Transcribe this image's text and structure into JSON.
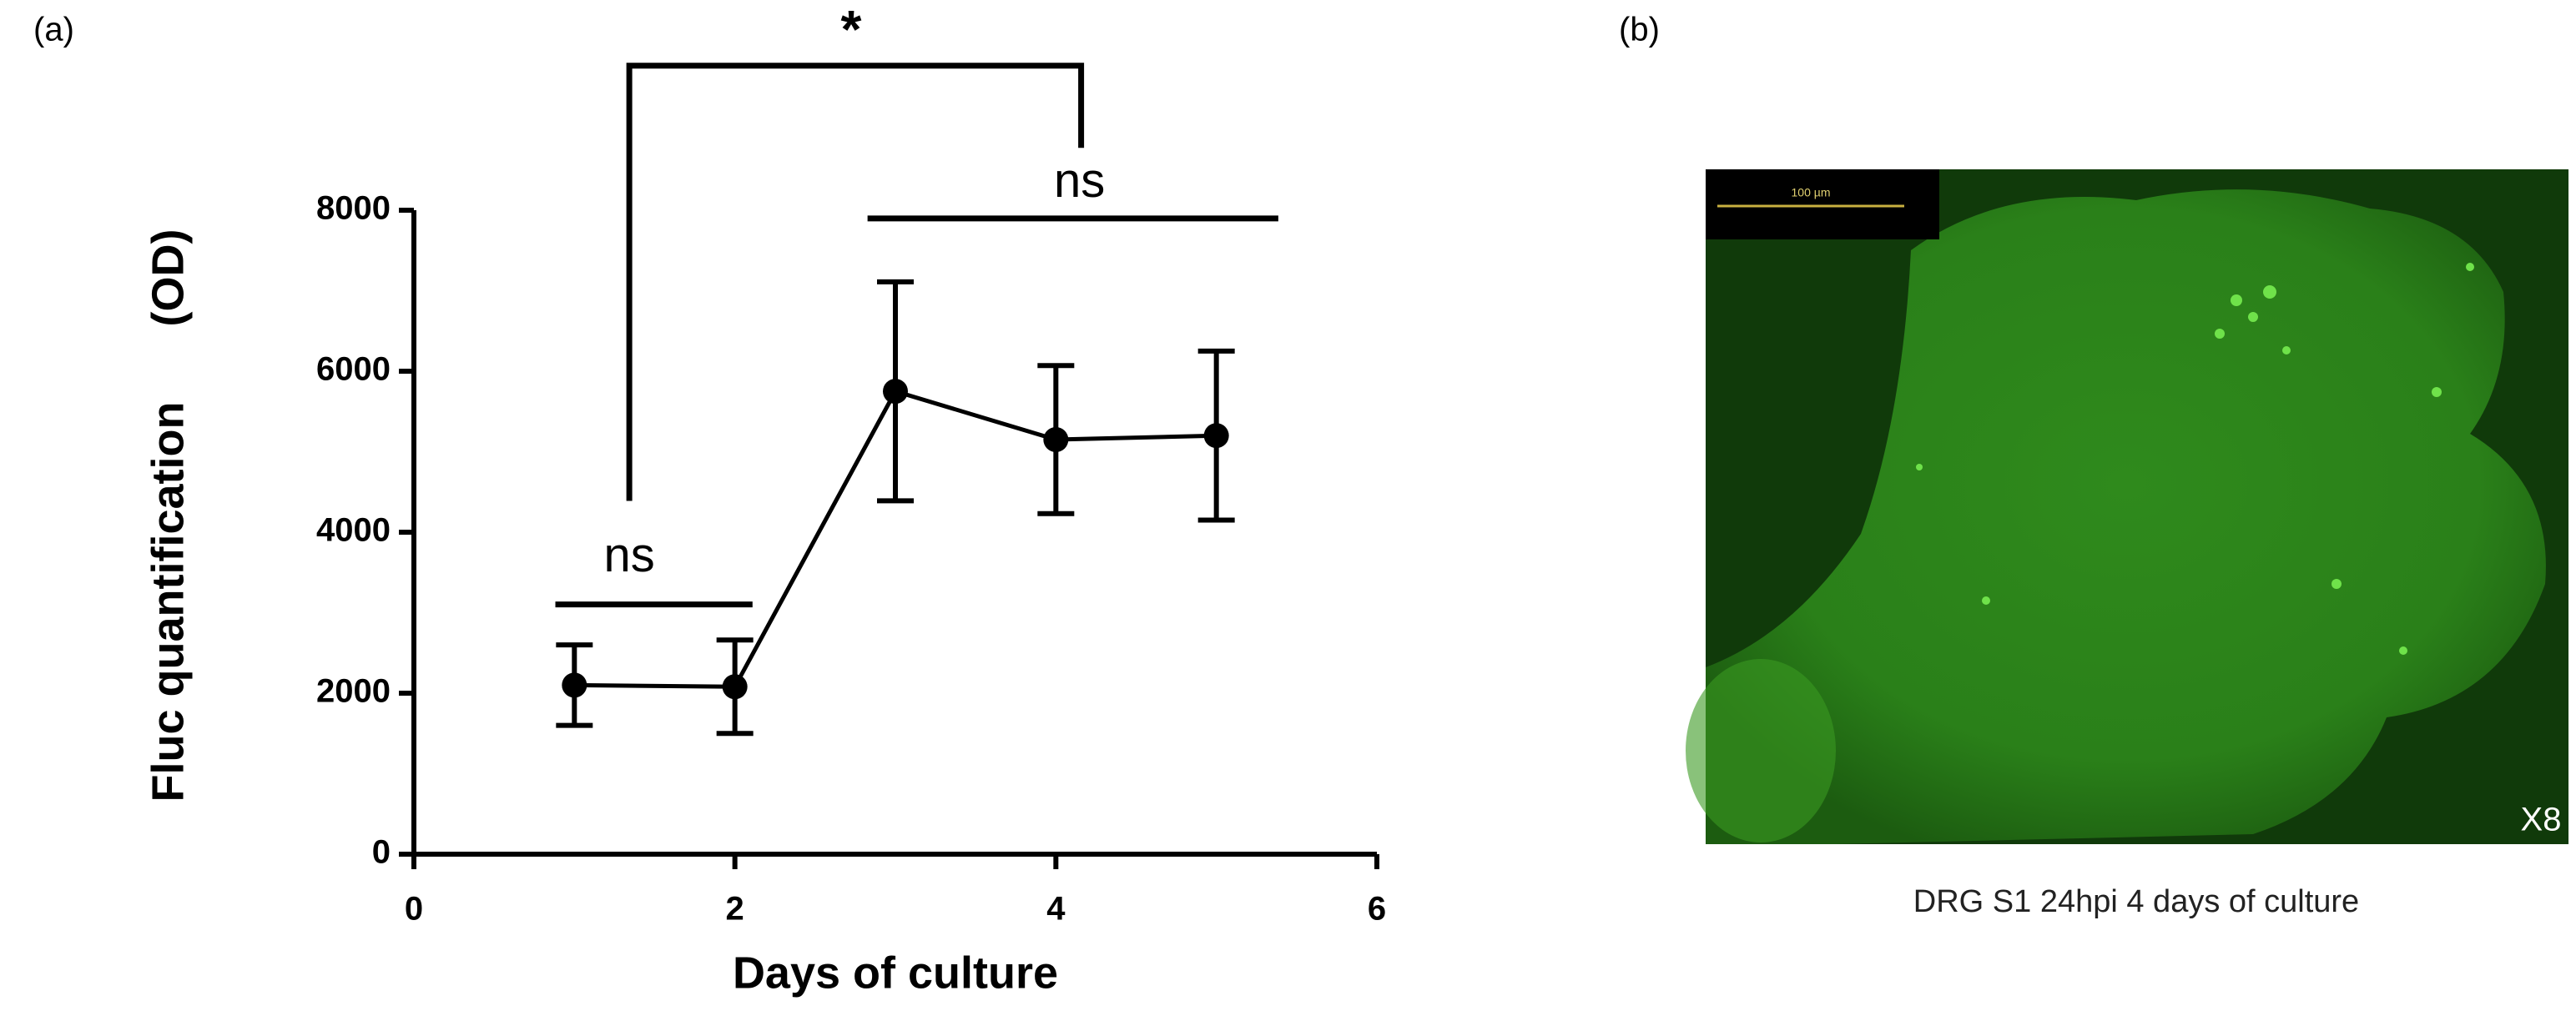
{
  "panel_a_label": "(a)",
  "chart_data": {
    "type": "line",
    "x": [
      1,
      2,
      3,
      4,
      5
    ],
    "series": [
      {
        "name": "Fluc",
        "color": "#000000",
        "values": [
          2100,
          2080,
          5750,
          5150,
          5200
        ],
        "errors": [
          500,
          580,
          1360,
          920,
          1050
        ]
      }
    ],
    "xlim": [
      0,
      6
    ],
    "xticks": [
      0,
      2,
      4,
      6
    ],
    "ylim": [
      0,
      8000
    ],
    "yticks": [
      0,
      2000,
      4000,
      6000,
      8000
    ],
    "x_label": "Days of culture",
    "y_label": "Fluc quantification      (OD)",
    "annotations": [
      "*",
      "ns",
      "ns"
    ]
  },
  "panel_b": {
    "label": "(b)",
    "scale_bar": "100 µm",
    "magnification": "X8",
    "caption": "DRG S1 24hpi 4 days of culture"
  }
}
